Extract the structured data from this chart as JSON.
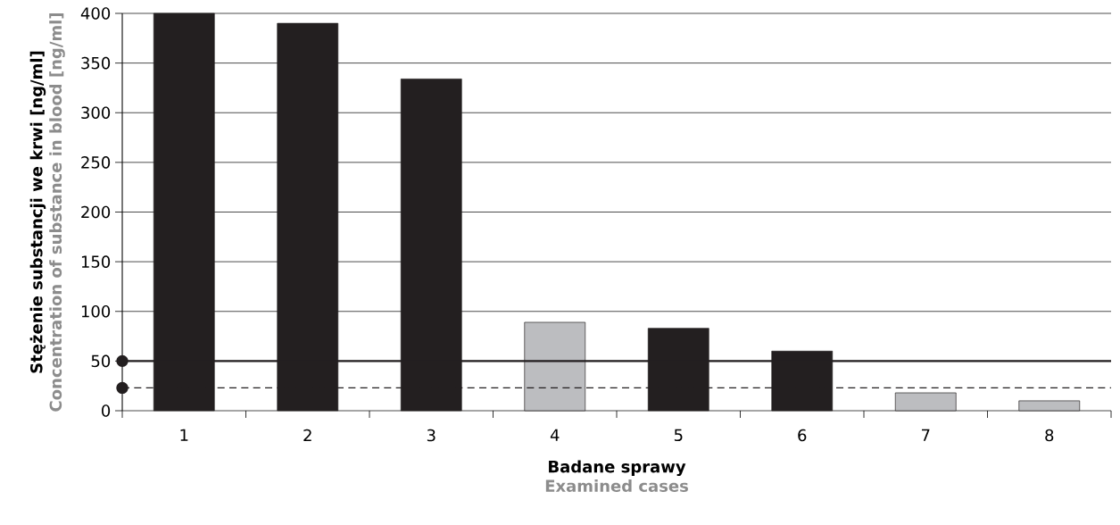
{
  "chart_data": {
    "type": "bar",
    "xlabel": "Badane sprawy",
    "ylabel": "Stężenie substancji we krwi [ng/ml]",
    "annotations": [
      "Examined cases",
      "Concentration of substance in blood [ng/ml]"
    ],
    "categories": [
      "1",
      "2",
      "3",
      "4",
      "5",
      "6",
      "7",
      "8"
    ],
    "values": [
      400,
      390,
      334,
      89,
      83,
      60,
      18,
      10
    ],
    "colors": [
      "#231f20",
      "#231f20",
      "#231f20",
      "#bcbdc0",
      "#231f20",
      "#231f20",
      "#bcbdc0",
      "#bcbdc0"
    ],
    "ylim": [
      0,
      400
    ],
    "yticks": [
      0,
      50,
      100,
      150,
      200,
      250,
      300,
      350,
      400
    ],
    "grid": "y",
    "ref_lines": [
      {
        "axis": "y",
        "value": 50,
        "color": "#231f20",
        "line_style": "solid"
      },
      {
        "axis": "y",
        "value": 23,
        "color": "#231f20",
        "line_style": "dashed"
      }
    ]
  }
}
